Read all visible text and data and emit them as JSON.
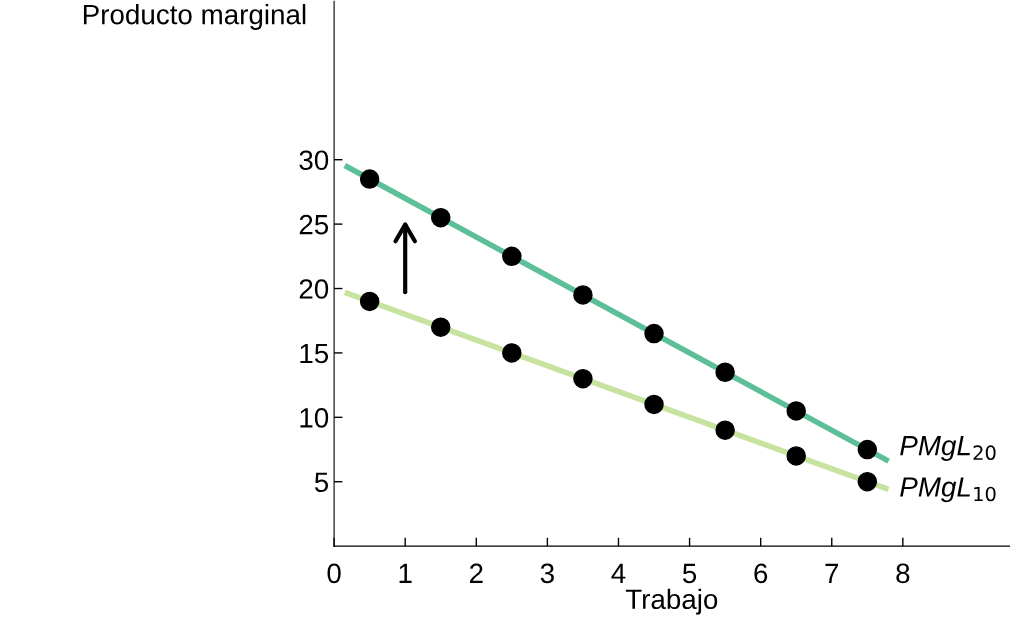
{
  "chart_data": {
    "type": "scatter",
    "xlabel": "Trabajo",
    "ylabel": "Producto marginal",
    "xlim": [
      0,
      9.5
    ],
    "ylim": [
      0,
      42.3
    ],
    "xticks": [
      0,
      1,
      2,
      3,
      4,
      5,
      6,
      7,
      8
    ],
    "yticks": [
      5,
      10,
      15,
      20,
      25,
      30
    ],
    "grid": false,
    "legend": false,
    "marker": "circle",
    "series": [
      {
        "type": "line",
        "marker": "none",
        "name": "PMgL$_{20}$",
        "color": "#5cbf98",
        "x": [
          0.15,
          7.8
        ],
        "values": [
          29.55,
          6.6
        ]
      },
      {
        "type": "line",
        "marker": "none",
        "name": "PMgL$_{10}$",
        "color": "#c8e3a0",
        "x": [
          0.15,
          7.8
        ],
        "values": [
          19.7,
          4.4
        ]
      },
      {
        "color": "#000000",
        "x": [
          0.5,
          1.5,
          2.5,
          3.5,
          4.5,
          5.5,
          6.5,
          7.5
        ],
        "values": [
          28.5,
          25.5,
          22.5,
          19.5,
          16.5,
          13.5,
          10.5,
          7.5
        ]
      },
      {
        "color": "#000000",
        "x": [
          0.5,
          1.5,
          2.5,
          3.5,
          4.5,
          5.5,
          6.5,
          7.5
        ],
        "values": [
          19,
          17,
          15,
          13,
          11,
          9,
          7,
          5
        ]
      }
    ]
  }
}
